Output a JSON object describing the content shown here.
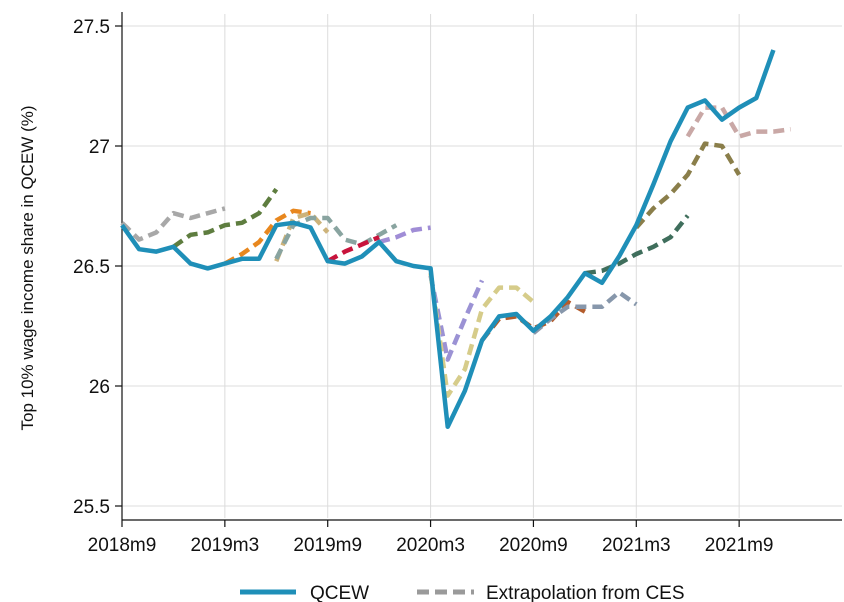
{
  "chart_data": {
    "type": "line",
    "ylabel": "Top 10% wage income share in QCEW (%)",
    "xlabel": "",
    "ylim": [
      25.45,
      27.55
    ],
    "yticks": [
      25.5,
      26,
      26.5,
      27,
      27.5
    ],
    "ytick_labels": [
      "25.5",
      "26",
      "26.5",
      "27",
      "27.5"
    ],
    "xlim": [
      "2018m9",
      "2022m3"
    ],
    "xticks": [
      "2018m9",
      "2019m3",
      "2019m9",
      "2020m3",
      "2020m9",
      "2021m3",
      "2021m9"
    ],
    "grid": true,
    "legend_position": "bottom",
    "legend": [
      {
        "label": "QCEW",
        "style": "solid",
        "color": "#1f8fb8"
      },
      {
        "label": "Extrapolation from CES",
        "style": "dashed",
        "color": "#9a9a9a"
      }
    ],
    "qcew": {
      "name": "QCEW",
      "color": "#1f8fb8",
      "start": "2018m9",
      "values": [
        26.67,
        26.57,
        26.56,
        26.58,
        26.51,
        26.49,
        26.51,
        26.53,
        26.53,
        26.67,
        26.68,
        26.66,
        26.52,
        26.51,
        26.54,
        26.6,
        26.52,
        26.5,
        26.49,
        25.83,
        25.98,
        26.19,
        26.29,
        26.3,
        26.23,
        26.29,
        26.37,
        26.47,
        26.43,
        26.54,
        26.67,
        26.84,
        27.02,
        27.16,
        27.19,
        27.11,
        27.16,
        27.2,
        27.4
      ]
    },
    "extrapolations": [
      {
        "color": "#a8a8a8",
        "start": "2018m9",
        "values": [
          26.68,
          26.61,
          26.64,
          26.72,
          26.7,
          26.72,
          26.74
        ]
      },
      {
        "color": "#5e7d3f",
        "start": "2018m12",
        "values": [
          26.58,
          26.63,
          26.64,
          26.67,
          26.68,
          26.72,
          26.82
        ]
      },
      {
        "color": "#e8871e",
        "start": "2019m3",
        "values": [
          26.51,
          26.55,
          26.6,
          26.69,
          26.73,
          26.72
        ]
      },
      {
        "color": "#cdb37a",
        "start": "2019m6",
        "values": [
          26.52,
          26.7,
          26.72,
          26.64
        ]
      },
      {
        "color": "#89a4a0",
        "start": "2019m6",
        "values": [
          26.53,
          26.67,
          26.7,
          26.7,
          26.61,
          26.59,
          26.63,
          26.67
        ]
      },
      {
        "color": "#c8143c",
        "start": "2019m9",
        "values": [
          26.52,
          26.56,
          26.59,
          26.62
        ]
      },
      {
        "color": "#a08dd6",
        "start": "2019m12",
        "values": [
          26.6,
          26.62,
          26.65,
          26.66
        ]
      },
      {
        "color": "#9b92d4",
        "start": "2020m3",
        "values": [
          26.46,
          26.11,
          26.28,
          26.44
        ]
      },
      {
        "color": "#d6cc8a",
        "start": "2020m3",
        "values": [
          26.47,
          25.96,
          26.07,
          26.32,
          26.41,
          26.41,
          26.35
        ]
      },
      {
        "color": "#b35c2c",
        "start": "2020m6",
        "values": [
          26.19,
          26.28,
          26.29,
          26.24,
          26.27,
          26.35,
          26.31
        ]
      },
      {
        "color": "#8797ab",
        "start": "2020m9",
        "values": [
          26.22,
          26.28,
          26.33,
          26.33,
          26.33,
          26.39,
          26.34
        ]
      },
      {
        "color": "#3f6e5c",
        "start": "2020m12",
        "values": [
          26.47,
          26.48,
          26.51,
          26.55,
          26.58,
          26.62,
          26.71
        ]
      },
      {
        "color": "#8a7e4a",
        "start": "2021m3",
        "values": [
          26.66,
          26.74,
          26.8,
          26.88,
          27.01,
          27.0,
          26.88
        ]
      },
      {
        "color": "#c9a8a6",
        "start": "2021m6",
        "values": [
          27.04,
          27.16,
          27.16,
          27.04,
          27.06,
          27.06,
          27.07
        ]
      }
    ]
  }
}
